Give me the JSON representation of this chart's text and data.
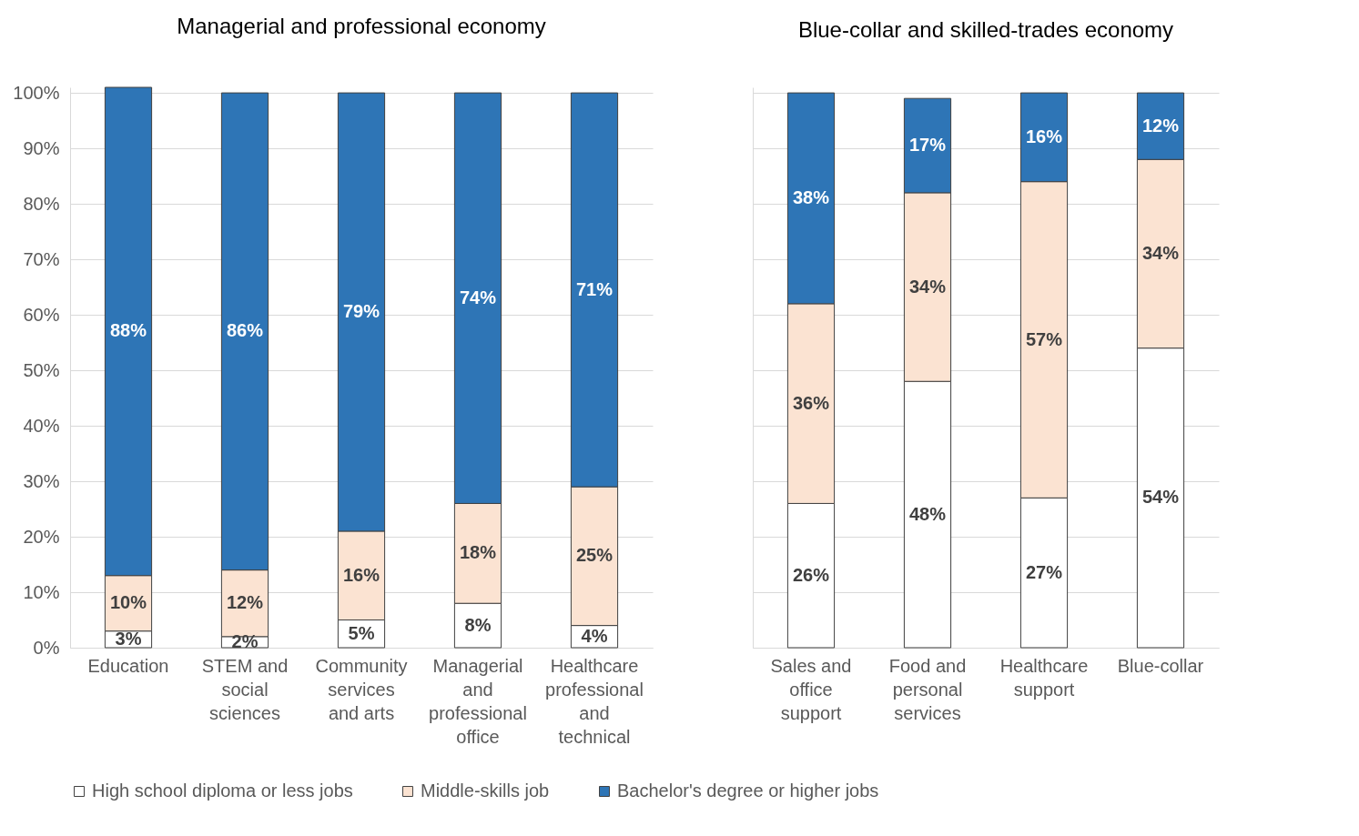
{
  "chart_data": [
    {
      "type": "bar",
      "stacked": true,
      "title": "Managerial and professional economy",
      "categories": [
        "Education",
        "STEM and social sciences",
        "Community services and arts",
        "Managerial and professional office",
        "Healthcare professional and technical"
      ],
      "series": [
        {
          "name": "High school diploma or less jobs",
          "color": "#ffffff",
          "values": [
            3,
            2,
            5,
            8,
            4
          ],
          "value_labels": [
            "3%",
            "2%",
            "5%",
            "8%",
            "4%"
          ]
        },
        {
          "name": "Middle-skills job",
          "color": "#fbe3d2",
          "values": [
            10,
            12,
            16,
            18,
            25
          ],
          "value_labels": [
            "10%",
            "12%",
            "16%",
            "18%",
            "25%"
          ]
        },
        {
          "name": "Bachelor's degree or higher jobs",
          "color": "#2e75b6",
          "values": [
            88,
            86,
            79,
            74,
            71
          ],
          "value_labels": [
            "88%",
            "86%",
            "79%",
            "74%",
            "71%"
          ]
        }
      ],
      "ylim": [
        0,
        101
      ],
      "yticks": [
        {
          "value": 0,
          "label": "0%"
        },
        {
          "value": 10,
          "label": "10%"
        },
        {
          "value": 20,
          "label": "20%"
        },
        {
          "value": 30,
          "label": "30%"
        },
        {
          "value": 40,
          "label": "40%"
        },
        {
          "value": 50,
          "label": "50%"
        },
        {
          "value": 60,
          "label": "60%"
        },
        {
          "value": 70,
          "label": "70%"
        },
        {
          "value": 80,
          "label": "80%"
        },
        {
          "value": 90,
          "label": "90%"
        },
        {
          "value": 100,
          "label": "100%"
        }
      ],
      "grid": "y",
      "legend": "bottom"
    },
    {
      "type": "bar",
      "stacked": true,
      "title": "Blue-collar and skilled-trades economy",
      "categories": [
        "Sales and office support",
        "Food and personal services",
        "Healthcare support",
        "Blue-collar"
      ],
      "series": [
        {
          "color": "#ffffff",
          "values": [
            26,
            48,
            27,
            54
          ],
          "value_labels": [
            "26%",
            "48%",
            "27%",
            "54%"
          ]
        },
        {
          "color": "#fbe3d2",
          "values": [
            36,
            34,
            57,
            34
          ],
          "value_labels": [
            "36%",
            "34%",
            "57%",
            "34%"
          ]
        },
        {
          "color": "#2e75b6",
          "values": [
            38,
            17,
            16,
            12
          ],
          "value_labels": [
            "38%",
            "17%",
            "16%",
            "12%"
          ]
        }
      ],
      "ylim": [
        0,
        101
      ],
      "yticks": [
        {
          "value": 0,
          "label": null
        },
        {
          "value": 10,
          "label": null
        },
        {
          "value": 20,
          "label": null
        },
        {
          "value": 30,
          "label": null
        },
        {
          "value": 40,
          "label": null
        },
        {
          "value": 50,
          "label": null
        },
        {
          "value": 60,
          "label": null
        },
        {
          "value": 70,
          "label": null
        },
        {
          "value": 80,
          "label": null
        },
        {
          "value": 90,
          "label": null
        },
        {
          "value": 100,
          "label": null
        }
      ],
      "grid": "y",
      "tick_labels": "x"
    }
  ]
}
